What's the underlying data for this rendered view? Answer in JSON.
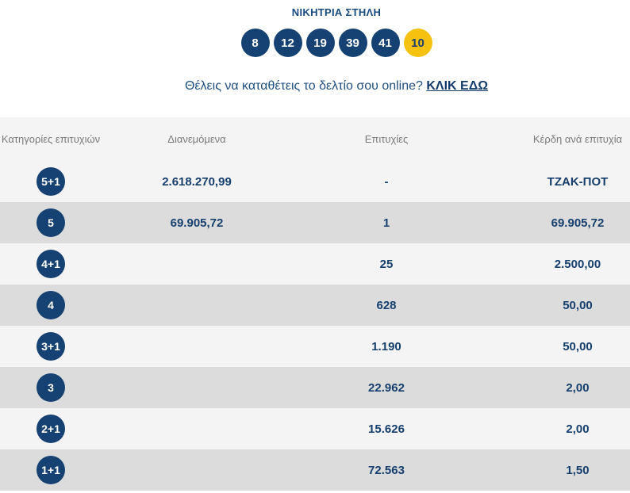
{
  "winning_numbers": {
    "title": "ΝΙΚΗΤΡΙΑ ΣΤΗΛΗ",
    "numbers": [
      "8",
      "12",
      "19",
      "39",
      "41"
    ],
    "joker": "10"
  },
  "online_prompt": {
    "text": "Θέλεις να καταθέτεις το δελτίο σου online?",
    "link_label": "ΚΛΙΚ ΕΔΩ"
  },
  "table": {
    "headers": {
      "category": "Κατηγορίες επιτυχιών",
      "distributed": "Διανεμόμενα",
      "winners": "Επιτυχίες",
      "prize": "Κέρδη ανά επιτυχία"
    },
    "rows": [
      {
        "category": "5+1",
        "distributed": "2.618.270,99",
        "winners": "-",
        "prize": "ΤΖΑΚ-ΠΟΤ"
      },
      {
        "category": "5",
        "distributed": "69.905,72",
        "winners": "1",
        "prize": "69.905,72"
      },
      {
        "category": "4+1",
        "distributed": "",
        "winners": "25",
        "prize": "2.500,00"
      },
      {
        "category": "4",
        "distributed": "",
        "winners": "628",
        "prize": "50,00"
      },
      {
        "category": "3+1",
        "distributed": "",
        "winners": "1.190",
        "prize": "50,00"
      },
      {
        "category": "3",
        "distributed": "",
        "winners": "22.962",
        "prize": "2,00"
      },
      {
        "category": "2+1",
        "distributed": "",
        "winners": "15.626",
        "prize": "2,00"
      },
      {
        "category": "1+1",
        "distributed": "",
        "winners": "72.563",
        "prize": "1,50"
      }
    ]
  },
  "colors": {
    "ball_blue": "#164273",
    "joker_yellow": "#f4c20f",
    "row_light": "#f4f4f4",
    "row_dark": "#dcdcdc"
  }
}
